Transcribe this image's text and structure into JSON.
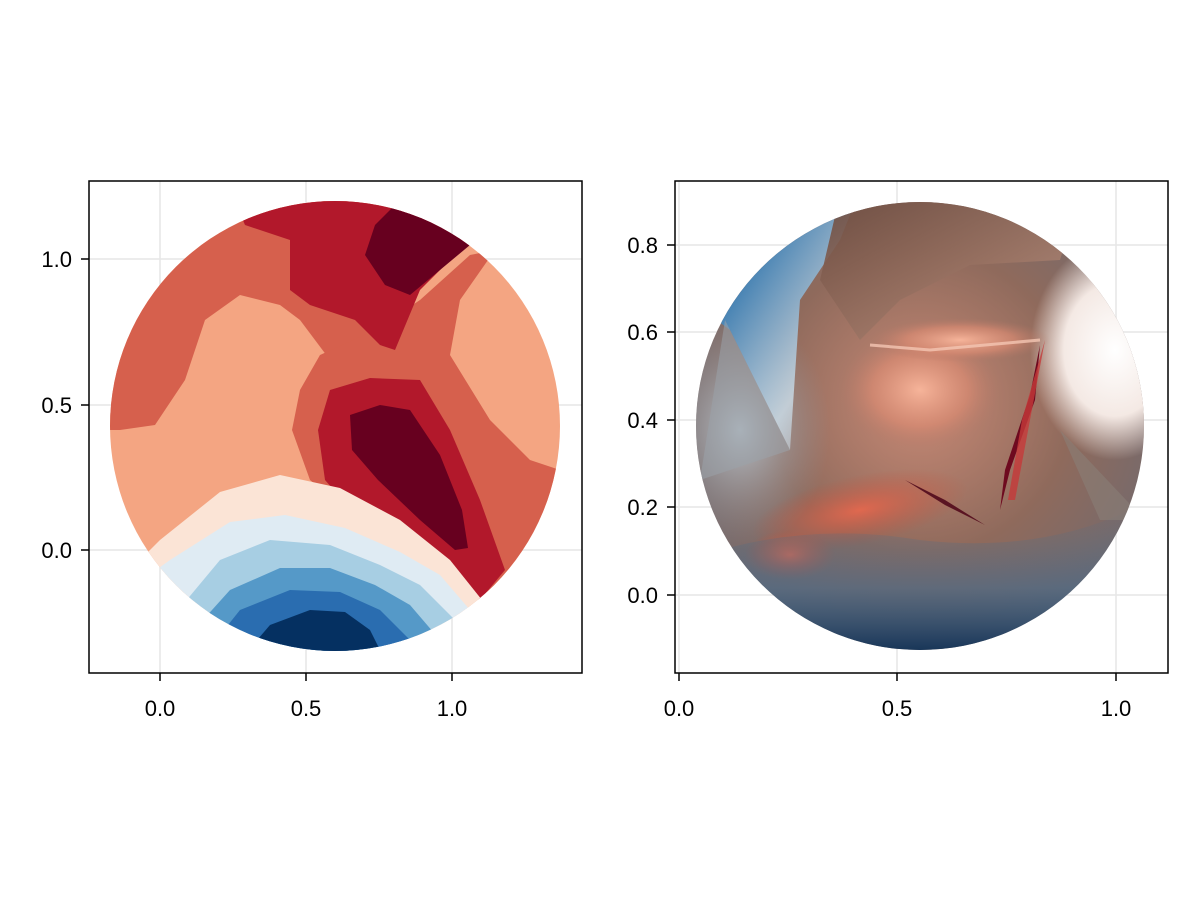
{
  "chart_data": [
    {
      "type": "contourf",
      "title": "",
      "xlabel": "",
      "ylabel": "",
      "xlim": [
        -0.25,
        1.45
      ],
      "ylim": [
        -0.43,
        1.27
      ],
      "xticks": [
        0.0,
        0.5,
        1.0
      ],
      "xtick_labels": [
        "0.0",
        "0.5",
        "1.0"
      ],
      "yticks": [
        0.0,
        0.5,
        1.0
      ],
      "ytick_labels": [
        "0.0",
        "0.5",
        "1.0"
      ],
      "grid": true,
      "colormap": "RdBu (reversed)",
      "domain": {
        "shape": "circle",
        "center": [
          0.6,
          0.42
        ],
        "radius": 0.77
      },
      "levels": [
        {
          "name": "darkest red",
          "color": "#67001f"
        },
        {
          "name": "red",
          "color": "#b2182b"
        },
        {
          "name": "orange-red",
          "color": "#d6604d"
        },
        {
          "name": "salmon",
          "color": "#f4a582"
        },
        {
          "name": "cream",
          "color": "#fbe4d6"
        },
        {
          "name": "pale blue",
          "color": "#dfebf3"
        },
        {
          "name": "light blue",
          "color": "#a7cee3"
        },
        {
          "name": "mid blue",
          "color": "#5599c8"
        },
        {
          "name": "blue",
          "color": "#2a6db0"
        },
        {
          "name": "darkest blue",
          "color": "#053061"
        }
      ]
    },
    {
      "type": "heatmap",
      "title": "",
      "xlabel": "",
      "ylabel": "",
      "xlim": [
        -0.01,
        1.12
      ],
      "ylim": [
        -0.18,
        0.95
      ],
      "xticks": [
        0.0,
        0.5,
        1.0
      ],
      "xtick_labels": [
        "0.0",
        "0.5",
        "1.0"
      ],
      "yticks": [
        0.0,
        0.2,
        0.4,
        0.6,
        0.8
      ],
      "ytick_labels": [
        "0.0",
        "0.2",
        "0.4",
        "0.6",
        "0.8"
      ],
      "grid": true,
      "colormap": "RdBu (reversed), shaded mesh",
      "domain": {
        "shape": "circle",
        "center": [
          0.5,
          0.38
        ],
        "radius": 0.51
      }
    }
  ]
}
